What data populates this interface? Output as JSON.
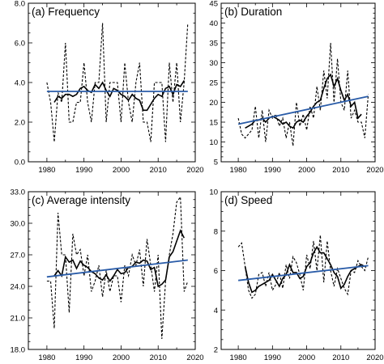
{
  "chart_data": [
    {
      "type": "line",
      "title": "(a) Frequency",
      "xlim": [
        1975,
        2020
      ],
      "ylim": [
        0.0,
        8.0
      ],
      "xticks": [
        1980,
        1990,
        2000,
        2010,
        2020
      ],
      "yticks": [
        "0.0",
        "2.0",
        "4.0",
        "6.0",
        "8.0"
      ],
      "series": [
        {
          "style": "dashed",
          "x": [
            1980,
            1981,
            1982,
            1983,
            1984,
            1985,
            1986,
            1987,
            1988,
            1989,
            1990,
            1991,
            1992,
            1993,
            1994,
            1995,
            1996,
            1997,
            1998,
            1999,
            2000,
            2001,
            2002,
            2003,
            2004,
            2005,
            2006,
            2007,
            2008,
            2009,
            2010,
            2011,
            2012,
            2013,
            2014,
            2015,
            2016,
            2017,
            2018
          ],
          "values": [
            4.0,
            3.0,
            1.0,
            3.5,
            3.0,
            6.0,
            2.0,
            2.0,
            3.0,
            3.0,
            5.0,
            3.0,
            2.0,
            4.0,
            4.0,
            7.0,
            2.0,
            4.0,
            4.0,
            4.0,
            2.0,
            5.0,
            3.0,
            2.0,
            4.0,
            5.0,
            2.0,
            2.0,
            1.0,
            4.0,
            4.0,
            4.0,
            1.0,
            5.0,
            3.0,
            5.0,
            2.0,
            4.0,
            7.0
          ]
        },
        {
          "style": "solid",
          "x": [
            1982,
            1983,
            1984,
            1985,
            1986,
            1987,
            1988,
            1989,
            1990,
            1991,
            1992,
            1993,
            1994,
            1995,
            1996,
            1997,
            1998,
            1999,
            2000,
            2001,
            2002,
            2003,
            2004,
            2005,
            2006,
            2007,
            2008,
            2009,
            2010,
            2011,
            2012,
            2013,
            2014,
            2015,
            2016,
            2017
          ],
          "values": [
            3.0,
            3.3,
            3.2,
            3.4,
            3.4,
            3.3,
            3.4,
            3.7,
            3.8,
            3.6,
            3.5,
            3.9,
            3.7,
            4.0,
            3.6,
            3.3,
            3.7,
            3.6,
            3.4,
            3.3,
            3.1,
            3.4,
            3.2,
            3.1,
            2.6,
            2.6,
            2.9,
            3.2,
            3.4,
            3.3,
            3.7,
            3.8,
            3.4,
            3.9,
            3.8,
            4.1
          ]
        },
        {
          "style": "trend",
          "x": [
            1980,
            2018
          ],
          "values": [
            3.55,
            3.55
          ]
        }
      ]
    },
    {
      "type": "line",
      "title": "(b) Duration",
      "xlim": [
        1975,
        2020
      ],
      "ylim": [
        5,
        45
      ],
      "xticks": [
        1980,
        1990,
        2000,
        2010,
        2020
      ],
      "yticks": [
        "5",
        "10",
        "15",
        "20",
        "25",
        "30",
        "35",
        "40",
        "45"
      ],
      "series": [
        {
          "style": "dashed",
          "x": [
            1980,
            1981,
            1982,
            1983,
            1984,
            1985,
            1986,
            1987,
            1988,
            1989,
            1990,
            1991,
            1992,
            1993,
            1994,
            1995,
            1996,
            1997,
            1998,
            1999,
            2000,
            2001,
            2002,
            2003,
            2004,
            2005,
            2006,
            2007,
            2008,
            2009,
            2010,
            2011,
            2012,
            2013,
            2014,
            2015,
            2016,
            2017,
            2018
          ],
          "values": [
            16,
            12,
            11,
            12,
            13,
            19,
            11,
            18,
            10,
            18,
            16,
            17,
            14,
            16,
            11,
            15,
            9,
            20,
            14,
            17,
            13,
            19,
            16,
            24,
            18,
            28,
            21,
            35,
            20,
            31,
            20,
            18,
            28,
            16,
            18,
            15,
            15,
            11,
            22
          ]
        },
        {
          "style": "solid",
          "x": [
            1982,
            1983,
            1984,
            1985,
            1986,
            1987,
            1988,
            1989,
            1990,
            1991,
            1992,
            1993,
            1994,
            1995,
            1996,
            1997,
            1998,
            1999,
            2000,
            2001,
            2002,
            2003,
            2004,
            2005,
            2006,
            2007,
            2008,
            2009,
            2010,
            2011,
            2012,
            2013,
            2014,
            2015,
            2016
          ],
          "values": [
            13.5,
            14,
            14.5,
            15.5,
            15.5,
            16,
            15,
            16,
            16.5,
            16,
            15.5,
            14.5,
            15,
            14,
            13.5,
            15,
            15.5,
            15,
            16.5,
            17.5,
            19,
            20,
            20.5,
            23.5,
            26,
            27,
            24,
            26,
            23,
            20.5,
            22,
            19,
            20,
            16,
            17
          ]
        },
        {
          "style": "trend",
          "x": [
            1980,
            2018
          ],
          "values": [
            14.5,
            21.5
          ]
        }
      ]
    },
    {
      "type": "line",
      "title": "(c) Average intensity",
      "xlim": [
        1975,
        2020
      ],
      "ylim": [
        18.0,
        33.0
      ],
      "xticks": [
        1980,
        1990,
        2000,
        2010,
        2020
      ],
      "yticks": [
        "18.0",
        "21.0",
        "24.0",
        "27.0",
        "30.0",
        "33.0"
      ],
      "series": [
        {
          "style": "dashed",
          "x": [
            1980,
            1981,
            1982,
            1983,
            1984,
            1985,
            1986,
            1987,
            1988,
            1989,
            1990,
            1991,
            1992,
            1993,
            1994,
            1995,
            1996,
            1997,
            1998,
            1999,
            2000,
            2001,
            2002,
            2003,
            2004,
            2005,
            2006,
            2007,
            2008,
            2009,
            2010,
            2011,
            2012,
            2013,
            2014,
            2015,
            2016,
            2017,
            2018
          ],
          "values": [
            24.5,
            24.5,
            20.0,
            31.0,
            27.0,
            27.0,
            21.5,
            29.0,
            27.0,
            27.5,
            25.0,
            27.0,
            23.5,
            24.5,
            26.0,
            23.0,
            25.5,
            23.5,
            25.0,
            25.0,
            22.5,
            26.0,
            25.0,
            27.0,
            26.0,
            27.5,
            24.0,
            28.5,
            26.0,
            23.5,
            27.0,
            19.0,
            24.5,
            27.0,
            29.0,
            32.0,
            32.5,
            23.5,
            24.5
          ]
        },
        {
          "style": "solid",
          "x": [
            1982,
            1983,
            1984,
            1985,
            1986,
            1987,
            1988,
            1989,
            1990,
            1991,
            1992,
            1993,
            1994,
            1995,
            1996,
            1997,
            1998,
            1999,
            2000,
            2001,
            2002,
            2003,
            2004,
            2005,
            2006,
            2007,
            2008,
            2009,
            2010,
            2011,
            2012,
            2013,
            2014,
            2015,
            2016,
            2017
          ],
          "values": [
            25.0,
            25.5,
            25.0,
            26.8,
            26.3,
            26.5,
            25.7,
            26.4,
            26.0,
            25.8,
            25.4,
            25.2,
            24.8,
            24.6,
            25.1,
            24.5,
            25.0,
            25.6,
            25.2,
            25.3,
            25.8,
            25.9,
            26.3,
            26.2,
            26.5,
            26.4,
            25.6,
            25.8,
            24.0,
            24.2,
            24.6,
            26.8,
            27.3,
            28.3,
            29.3,
            28.6
          ]
        },
        {
          "style": "trend",
          "x": [
            1980,
            2018
          ],
          "values": [
            24.9,
            26.5
          ]
        }
      ]
    },
    {
      "type": "line",
      "title": "(d) Speed",
      "xlim": [
        1975,
        2020
      ],
      "ylim": [
        2,
        10
      ],
      "xticks": [
        1980,
        1990,
        2000,
        2010,
        2020
      ],
      "yticks": [
        "2",
        "4",
        "6",
        "8",
        "10"
      ],
      "series": [
        {
          "style": "dashed",
          "x": [
            1980,
            1981,
            1982,
            1983,
            1984,
            1985,
            1986,
            1987,
            1988,
            1989,
            1990,
            1991,
            1992,
            1993,
            1994,
            1995,
            1996,
            1997,
            1998,
            1999,
            2000,
            2001,
            2002,
            2003,
            2004,
            2005,
            2006,
            2007,
            2008,
            2009,
            2010,
            2011,
            2012,
            2013,
            2014,
            2015,
            2016,
            2017,
            2018
          ],
          "values": [
            7.2,
            7.4,
            6.2,
            5.0,
            4.6,
            4.8,
            5.8,
            5.9,
            5.2,
            5.9,
            5.0,
            5.3,
            5.9,
            5.1,
            6.3,
            5.6,
            6.7,
            6.4,
            5.8,
            5.0,
            6.8,
            6.1,
            7.5,
            6.0,
            7.8,
            5.4,
            7.5,
            6.0,
            5.2,
            6.1,
            5.6,
            5.1,
            4.8,
            6.0,
            5.9,
            6.5,
            6.2,
            6.0,
            6.7
          ]
        },
        {
          "style": "solid",
          "x": [
            1982,
            1983,
            1984,
            1985,
            1986,
            1987,
            1988,
            1989,
            1990,
            1991,
            1992,
            1993,
            1994,
            1995,
            1996,
            1997,
            1998,
            1999,
            2000,
            2001,
            2002,
            2003,
            2004,
            2005,
            2006,
            2007,
            2008,
            2009,
            2010,
            2011,
            2012,
            2013,
            2014,
            2015,
            2016,
            2017
          ],
          "values": [
            6.2,
            5.4,
            4.9,
            5.0,
            5.2,
            5.3,
            5.4,
            5.5,
            5.8,
            5.5,
            5.2,
            5.6,
            5.8,
            6.3,
            5.9,
            5.9,
            5.6,
            5.7,
            6.2,
            6.4,
            6.9,
            7.2,
            6.9,
            6.9,
            6.6,
            6.3,
            5.9,
            5.7,
            5.1,
            5.3,
            5.7,
            6.0,
            6.1,
            6.2,
            6.3,
            6.2
          ]
        },
        {
          "style": "trend",
          "x": [
            1980,
            2018
          ],
          "values": [
            5.5,
            6.25
          ]
        }
      ]
    }
  ],
  "colors": {
    "trend": "#2a5ca8",
    "data": "#000000"
  }
}
